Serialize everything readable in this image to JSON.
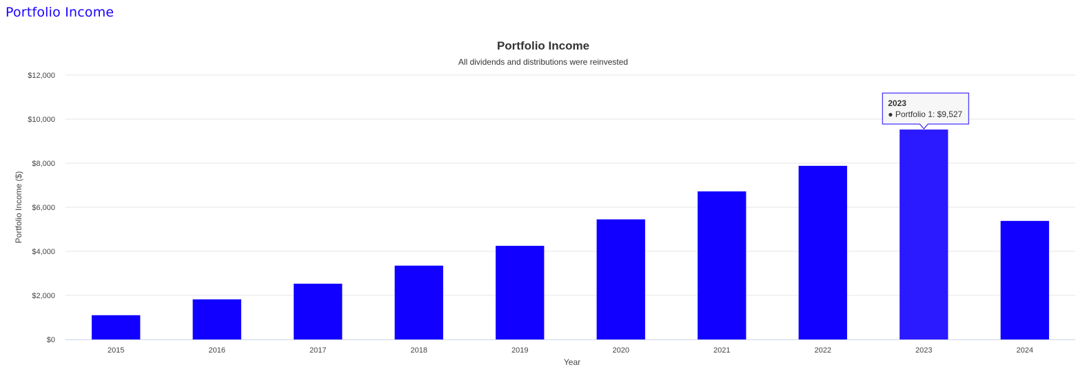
{
  "page": {
    "heading": "Portfolio Income"
  },
  "colors": {
    "bar": "#1100ff",
    "bar_hover": "#2b1aff",
    "heading": "#1a00ff"
  },
  "chart_data": {
    "type": "bar",
    "title": "Portfolio Income",
    "subtitle": "All dividends and distributions were reinvested",
    "xlabel": "Year",
    "ylabel": "Portfolio Income ($)",
    "ylim": [
      0,
      12000
    ],
    "yticks": [
      "$0",
      "$2,000",
      "$4,000",
      "$6,000",
      "$8,000",
      "$10,000",
      "$12,000"
    ],
    "grid": true,
    "legend": "none",
    "categories": [
      "2015",
      "2016",
      "2017",
      "2018",
      "2019",
      "2020",
      "2021",
      "2022",
      "2023",
      "2024"
    ],
    "series": [
      {
        "name": "Portfolio 1",
        "values": [
          1100,
          1820,
          2530,
          3350,
          4250,
          5450,
          6720,
          7880,
          9527,
          5380
        ]
      }
    ],
    "tooltip": {
      "category": "2023",
      "title": "2023",
      "text": "● Portfolio 1: $9,527"
    }
  }
}
